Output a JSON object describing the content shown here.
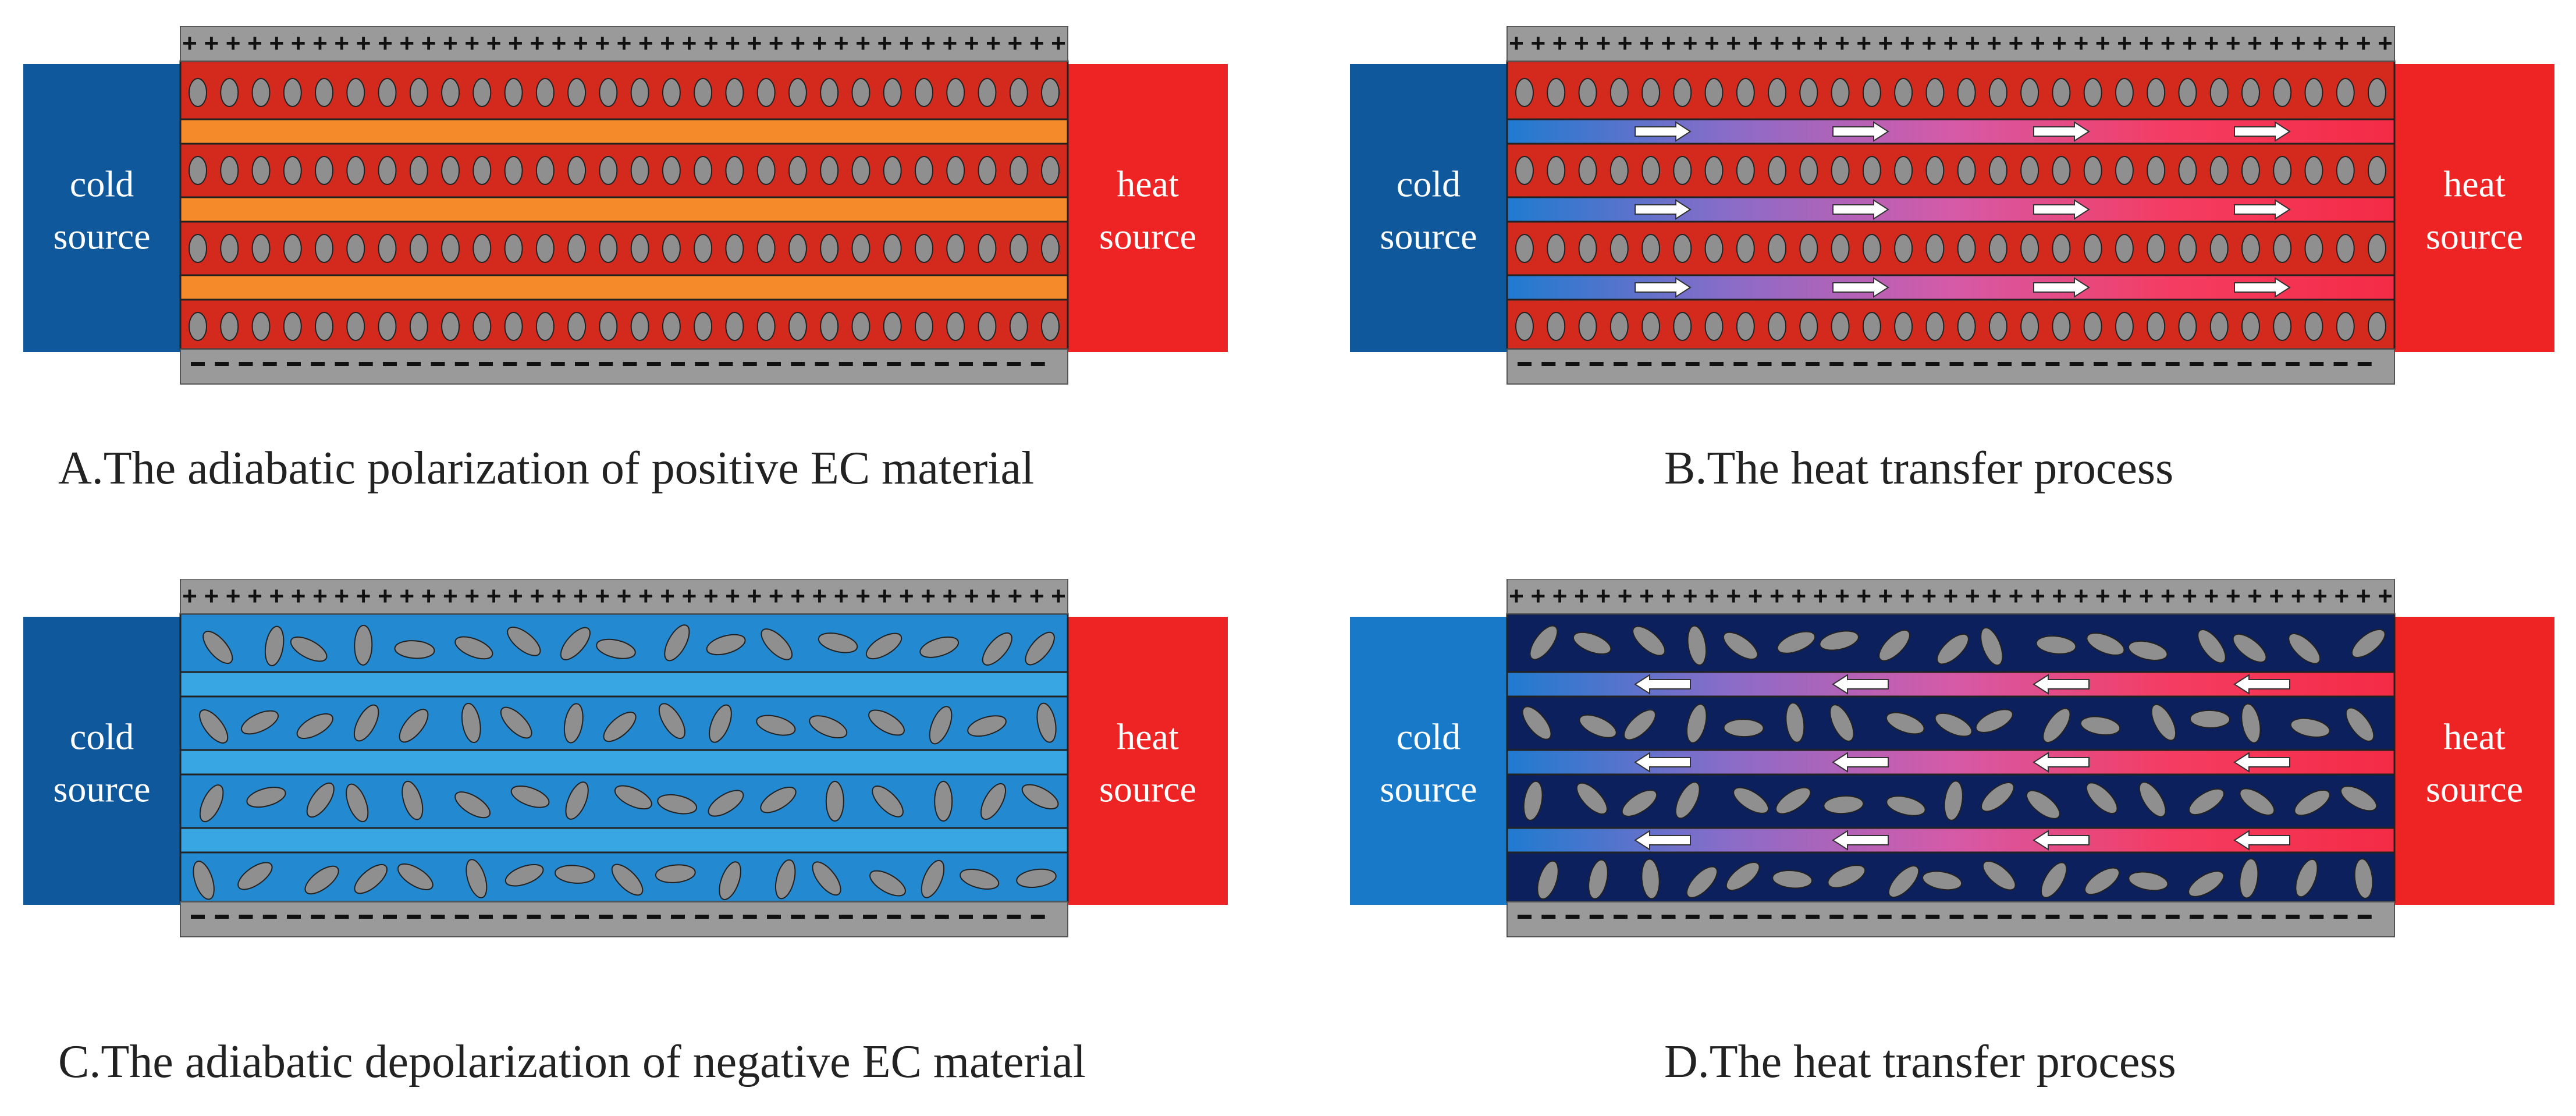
{
  "panels": [
    {
      "id": "A",
      "caption": "A.The adiabatic polarization of positive EC material",
      "state": "polarized",
      "material_color": "#d42a1e",
      "layer_color": "#f58a2a",
      "left_block": {
        "label_line1": "cold",
        "label_line2": "source",
        "color": "#10589c"
      },
      "right_block": {
        "label_line1": "heat",
        "label_line2": "source",
        "color": "#ee2424"
      },
      "top_electrode": "+",
      "bottom_electrode": "–",
      "heat_flow": "none"
    },
    {
      "id": "B",
      "caption": "B.The heat transfer process",
      "state": "polarized",
      "material_color": "#d42a1e",
      "layer_gradient": [
        "#1f7bd0",
        "#8a6cc8",
        "#d55aa8",
        "#f43c62",
        "#f42b45"
      ],
      "left_block": {
        "label_line1": "cold",
        "label_line2": "source",
        "color": "#10589c"
      },
      "right_block": {
        "label_line1": "heat",
        "label_line2": "source",
        "color": "#ee2424"
      },
      "top_electrode": "+",
      "bottom_electrode": "–",
      "heat_flow": "right"
    },
    {
      "id": "C",
      "caption": "C.The adiabatic depolarization of negative EC material",
      "state": "depolarized",
      "material_color": "#2389d0",
      "layer_color": "#37a6e3",
      "left_block": {
        "label_line1": "cold",
        "label_line2": "source",
        "color": "#10589c"
      },
      "right_block": {
        "label_line1": "heat",
        "label_line2": "source",
        "color": "#ee2424"
      },
      "top_electrode": "+",
      "bottom_electrode": "–",
      "heat_flow": "none"
    },
    {
      "id": "D",
      "caption": "D.The heat transfer process",
      "state": "depolarized",
      "material_color": "#0b205c",
      "layer_gradient": [
        "#1f7bd0",
        "#8a6cc8",
        "#d55aa8",
        "#f43c62",
        "#f42b45"
      ],
      "left_block": {
        "label_line1": "cold",
        "label_line2": "source",
        "color": "#1879c8"
      },
      "right_block": {
        "label_line1": "heat",
        "label_line2": "source",
        "color": "#ee2424"
      },
      "top_electrode": "+",
      "bottom_electrode": "–",
      "heat_flow": "left"
    }
  ]
}
